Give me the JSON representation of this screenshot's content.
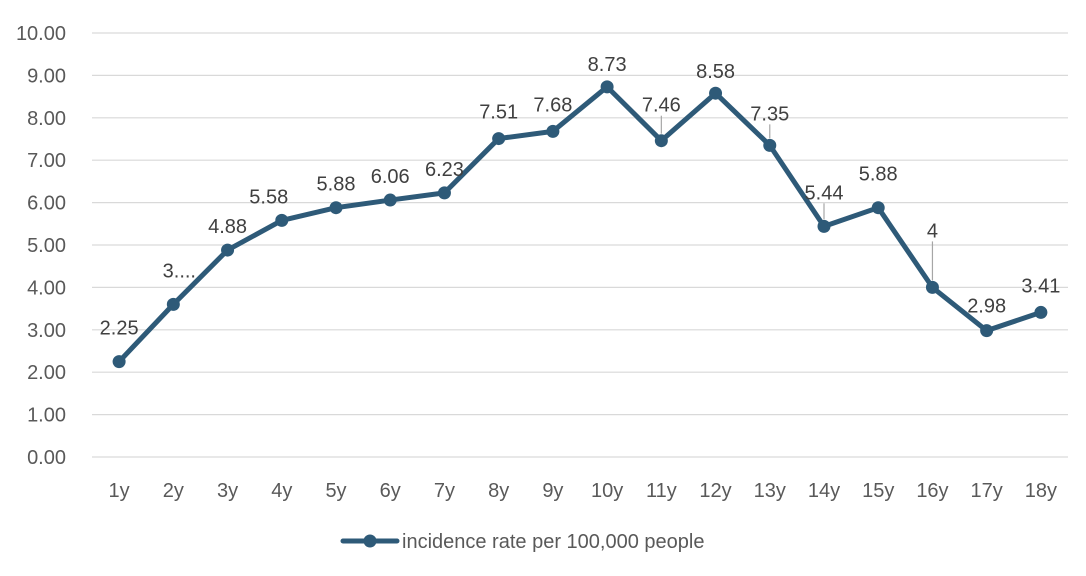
{
  "chart_data": {
    "type": "line",
    "categories": [
      "1y",
      "2y",
      "3y",
      "4y",
      "5y",
      "6y",
      "7y",
      "8y",
      "9y",
      "10y",
      "11y",
      "12y",
      "13y",
      "14y",
      "15y",
      "16y",
      "17y",
      "18y"
    ],
    "series": [
      {
        "name": "incidence rate per 100,000 people",
        "values": [
          2.25,
          3.6,
          4.88,
          5.58,
          5.88,
          6.06,
          6.23,
          7.51,
          7.68,
          8.73,
          7.46,
          8.58,
          7.35,
          5.44,
          5.88,
          4,
          2.98,
          3.41
        ],
        "data_labels": [
          "2.25",
          "3....",
          "4.88",
          "5.58",
          "5.88",
          "6.06",
          "6.23",
          "7.51",
          "7.68",
          "8.73",
          "7.46",
          "8.58",
          "7.35",
          "5.44",
          "5.88",
          "4",
          "2.98",
          "3.41"
        ],
        "color": "#2E5A78"
      }
    ],
    "ylim": [
      0,
      10
    ],
    "yticks": [
      "0.00",
      "1.00",
      "2.00",
      "3.00",
      "4.00",
      "5.00",
      "6.00",
      "7.00",
      "8.00",
      "9.00",
      "10.00"
    ],
    "grid": true,
    "legend_position": "bottom",
    "title": "",
    "xlabel": "",
    "ylabel": ""
  },
  "colors": {
    "line": "#2E5A78",
    "grid": "#D9D9D9",
    "tick_text": "#595959",
    "label_text": "#404040",
    "leader": "#A6A6A6"
  }
}
